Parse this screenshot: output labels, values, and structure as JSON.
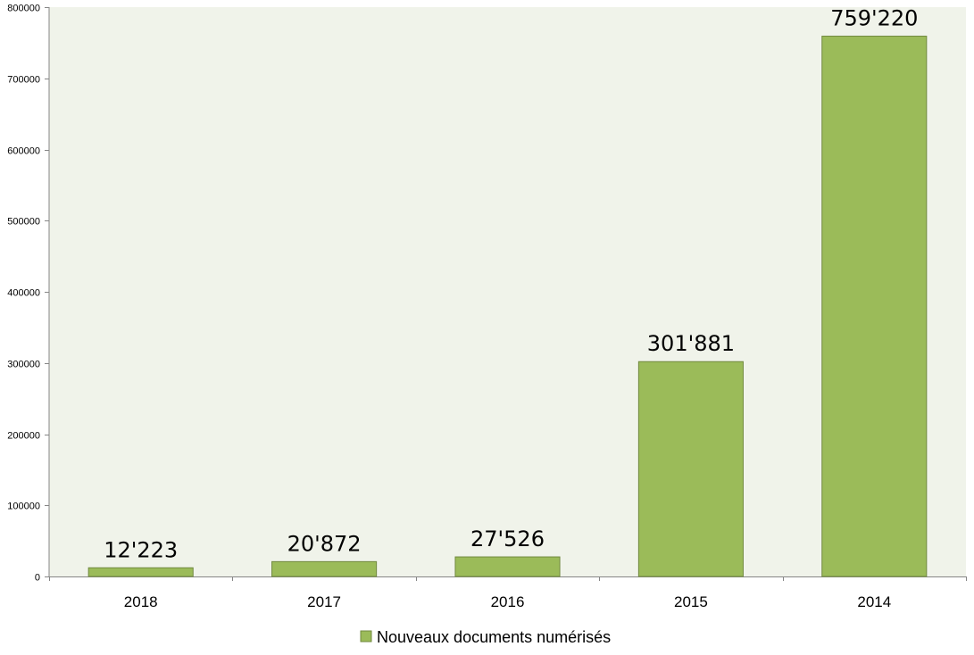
{
  "chart_data": {
    "type": "bar",
    "categories": [
      "2018",
      "2017",
      "2016",
      "2015",
      "2014"
    ],
    "series": [
      {
        "name": "Nouveaux documents numérisés",
        "values": [
          12223,
          20872,
          27526,
          301881,
          759220
        ],
        "data_labels": [
          "12'223",
          "20'872",
          "27'526",
          "301'881",
          "759'220"
        ]
      }
    ],
    "y_ticks": [
      "0",
      "100000",
      "200000",
      "300000",
      "400000",
      "500000",
      "600000",
      "700000",
      "800000"
    ],
    "ylim": [
      0,
      800000
    ],
    "grid": false,
    "legend": "bottom-center"
  },
  "colors": {
    "plot_background": "#f0f3ea",
    "bar_fill": "#9bbb59",
    "bar_stroke": "#71893f",
    "axis": "#868686"
  }
}
